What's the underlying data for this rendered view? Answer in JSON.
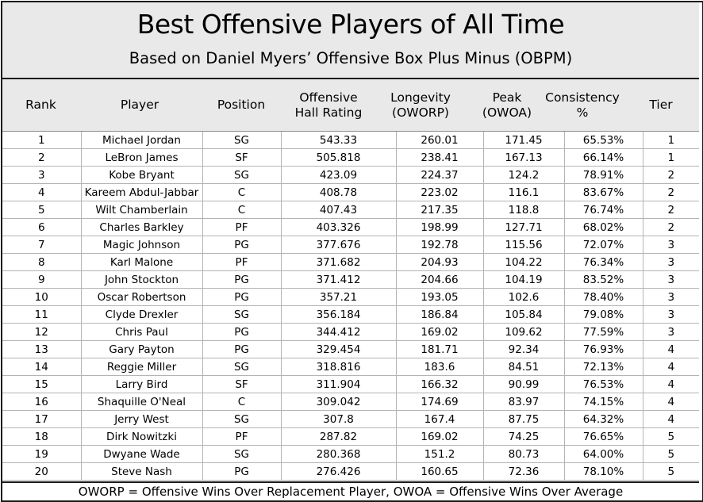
{
  "chart_data": {
    "type": "table",
    "title": "Best Offensive Players of All Time",
    "subtitle": "Based on Daniel Myers’ Offensive Box Plus Minus (OBPM)",
    "columns": [
      "Rank",
      "Player",
      "Position",
      "Offensive Hall Rating",
      "Longevity (OWORP)",
      "Peak (OWOA)",
      "Consistency %",
      "Tier"
    ],
    "rows": [
      [
        "1",
        "Michael Jordan",
        "SG",
        "543.33",
        "260.01",
        "171.45",
        "65.53%",
        "1"
      ],
      [
        "2",
        "LeBron James",
        "SF",
        "505.818",
        "238.41",
        "167.13",
        "66.14%",
        "1"
      ],
      [
        "3",
        "Kobe Bryant",
        "SG",
        "423.09",
        "224.37",
        "124.2",
        "78.91%",
        "2"
      ],
      [
        "4",
        "Kareem Abdul-Jabbar",
        "C",
        "408.78",
        "223.02",
        "116.1",
        "83.67%",
        "2"
      ],
      [
        "5",
        "Wilt Chamberlain",
        "C",
        "407.43",
        "217.35",
        "118.8",
        "76.74%",
        "2"
      ],
      [
        "6",
        "Charles Barkley",
        "PF",
        "403.326",
        "198.99",
        "127.71",
        "68.02%",
        "2"
      ],
      [
        "7",
        "Magic Johnson",
        "PG",
        "377.676",
        "192.78",
        "115.56",
        "72.07%",
        "3"
      ],
      [
        "8",
        "Karl Malone",
        "PF",
        "371.682",
        "204.93",
        "104.22",
        "76.34%",
        "3"
      ],
      [
        "9",
        "John Stockton",
        "PG",
        "371.412",
        "204.66",
        "104.19",
        "83.52%",
        "3"
      ],
      [
        "10",
        "Oscar Robertson",
        "PG",
        "357.21",
        "193.05",
        "102.6",
        "78.40%",
        "3"
      ],
      [
        "11",
        "Clyde Drexler",
        "SG",
        "356.184",
        "186.84",
        "105.84",
        "79.08%",
        "3"
      ],
      [
        "12",
        "Chris Paul",
        "PG",
        "344.412",
        "169.02",
        "109.62",
        "77.59%",
        "3"
      ],
      [
        "13",
        "Gary Payton",
        "PG",
        "329.454",
        "181.71",
        "92.34",
        "76.93%",
        "4"
      ],
      [
        "14",
        "Reggie Miller",
        "SG",
        "318.816",
        "183.6",
        "84.51",
        "72.13%",
        "4"
      ],
      [
        "15",
        "Larry Bird",
        "SF",
        "311.904",
        "166.32",
        "90.99",
        "76.53%",
        "4"
      ],
      [
        "16",
        "Shaquille O'Neal",
        "C",
        "309.042",
        "174.69",
        "83.97",
        "74.15%",
        "4"
      ],
      [
        "17",
        "Jerry West",
        "SG",
        "307.8",
        "167.4",
        "87.75",
        "64.32%",
        "4"
      ],
      [
        "18",
        "Dirk Nowitzki",
        "PF",
        "287.82",
        "169.02",
        "74.25",
        "76.65%",
        "5"
      ],
      [
        "19",
        "Dwyane Wade",
        "SG",
        "280.368",
        "151.2",
        "80.73",
        "64.00%",
        "5"
      ],
      [
        "20",
        "Steve Nash",
        "PG",
        "276.426",
        "160.65",
        "72.36",
        "78.10%",
        "5"
      ]
    ],
    "footnote": "OWORP = Offensive Wins Over Replacement Player,  OWOA = Offensive Wins Over Average",
    "colors": {
      "header_bg": "#e9e9e9",
      "border": "#1a1a1a",
      "grid": "#b4b4b4"
    }
  }
}
